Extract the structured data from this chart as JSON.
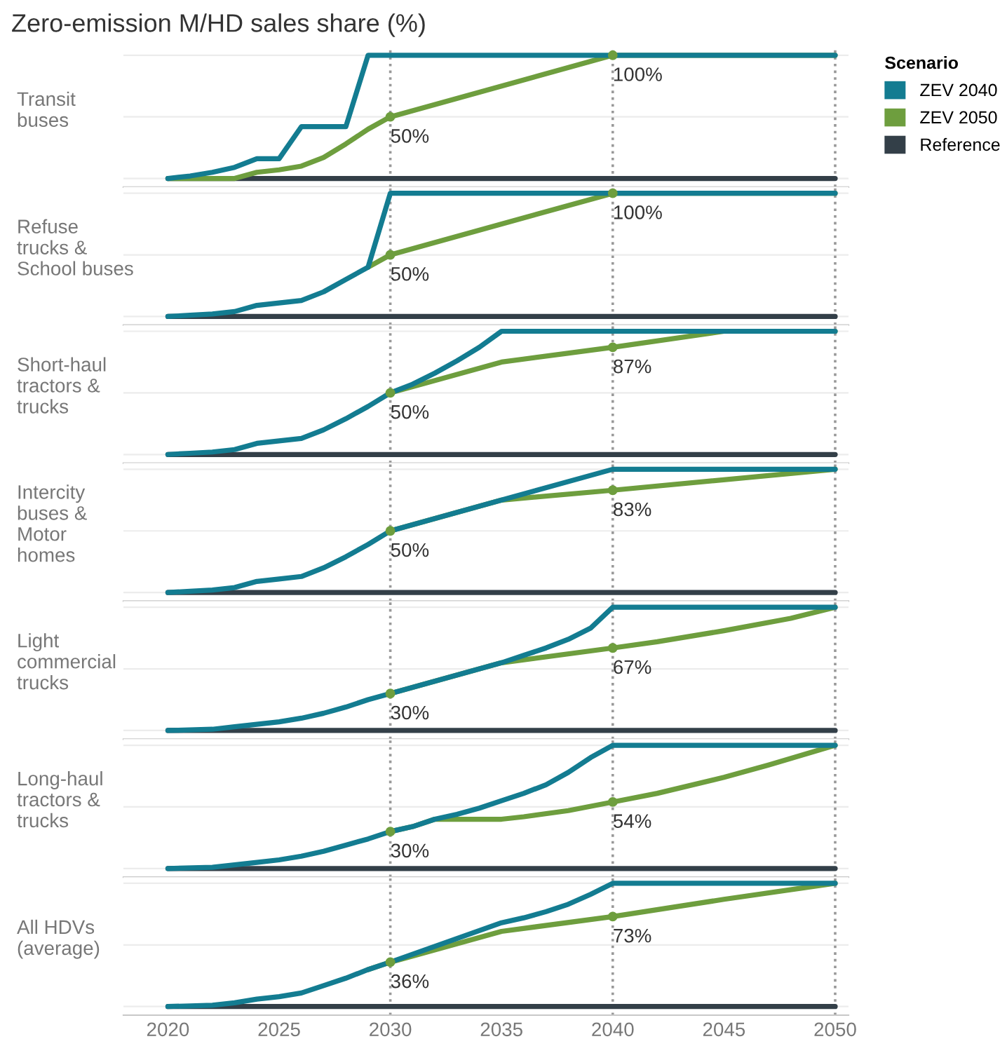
{
  "chart_data": [
    {
      "type": "line",
      "title": "Zero-emission M/HD sales share (%)",
      "ylabel": "Transit\nbuses",
      "legend_title": "Scenario",
      "legend": "right",
      "tick_labels": false,
      "grid": "y",
      "line_style": "solid",
      "xlim": [
        2018,
        2050.6
      ],
      "ylim": [
        -7,
        105
      ],
      "yticks": [
        {
          "value": 0,
          "label": null
        },
        {
          "value": 50,
          "label": null
        },
        {
          "value": 100,
          "label": null
        }
      ],
      "ref_lines": [
        {
          "axis": "x",
          "value": 2030,
          "line_style": "dotted",
          "color": "#999999"
        },
        {
          "axis": "x",
          "value": 2040,
          "line_style": "dotted",
          "color": "#999999"
        },
        {
          "axis": "x",
          "value": 2050,
          "line_style": "dotted",
          "color": "#999999"
        }
      ],
      "series": [
        {
          "name": "ZEV 2040",
          "color": "#137c91",
          "x": [
            2020,
            2021,
            2022,
            2023,
            2024,
            2025,
            2026,
            2027,
            2028,
            2029,
            2050
          ],
          "values": [
            0,
            2,
            5,
            9,
            16,
            16,
            42,
            42,
            42,
            100,
            100
          ]
        },
        {
          "name": "ZEV 2050",
          "color": "#6e9e3e",
          "x": [
            2020,
            2023,
            2024,
            2025,
            2026,
            2027,
            2028,
            2029,
            2030,
            2040,
            2050
          ],
          "values": [
            0,
            0,
            5,
            7,
            10,
            17,
            28,
            40,
            50,
            100,
            100
          ],
          "value_labels": [
            null,
            null,
            null,
            null,
            null,
            null,
            null,
            null,
            "50%",
            "100%",
            null
          ]
        },
        {
          "name": "Reference",
          "color": "#333f48",
          "x": [
            2020,
            2050
          ],
          "values": [
            0,
            0
          ]
        }
      ]
    },
    {
      "type": "line",
      "ylabel": "Refuse\ntrucks &\nSchool buses",
      "tick_labels": false,
      "grid": "y",
      "line_style": "solid",
      "xlim": [
        2018,
        2050.6
      ],
      "ylim": [
        -7,
        105
      ],
      "yticks": [
        {
          "value": 0,
          "label": null
        },
        {
          "value": 50,
          "label": null
        },
        {
          "value": 100,
          "label": null
        }
      ],
      "ref_lines": [
        {
          "axis": "x",
          "value": 2030,
          "line_style": "dotted",
          "color": "#999999"
        },
        {
          "axis": "x",
          "value": 2040,
          "line_style": "dotted",
          "color": "#999999"
        },
        {
          "axis": "x",
          "value": 2050,
          "line_style": "dotted",
          "color": "#999999"
        }
      ],
      "series": [
        {
          "color": "#137c91",
          "x": [
            2020,
            2021,
            2022,
            2023,
            2024,
            2025,
            2026,
            2027,
            2028,
            2029,
            2030,
            2050
          ],
          "values": [
            0,
            1,
            2,
            4,
            9,
            11,
            13,
            20,
            30,
            40,
            100,
            100
          ]
        },
        {
          "color": "#6e9e3e",
          "x": [
            2029,
            2030,
            2040,
            2050
          ],
          "values": [
            40,
            50,
            100,
            100
          ],
          "value_labels": [
            null,
            "50%",
            "100%",
            null
          ]
        },
        {
          "color": "#333f48",
          "x": [
            2020,
            2050
          ],
          "values": [
            0,
            0
          ]
        }
      ]
    },
    {
      "type": "line",
      "ylabel": "Short-haul\ntractors &\ntrucks",
      "tick_labels": false,
      "grid": "y",
      "line_style": "solid",
      "xlim": [
        2018,
        2050.6
      ],
      "ylim": [
        -7,
        105
      ],
      "yticks": [
        {
          "value": 0,
          "label": null
        },
        {
          "value": 50,
          "label": null
        },
        {
          "value": 100,
          "label": null
        }
      ],
      "ref_lines": [
        {
          "axis": "x",
          "value": 2030,
          "line_style": "dotted",
          "color": "#999999"
        },
        {
          "axis": "x",
          "value": 2040,
          "line_style": "dotted",
          "color": "#999999"
        },
        {
          "axis": "x",
          "value": 2050,
          "line_style": "dotted",
          "color": "#999999"
        }
      ],
      "series": [
        {
          "color": "#137c91",
          "x": [
            2020,
            2021,
            2022,
            2023,
            2024,
            2025,
            2026,
            2027,
            2028,
            2029,
            2030,
            2031,
            2032,
            2033,
            2034,
            2035,
            2050
          ],
          "values": [
            0,
            1,
            2,
            4,
            9,
            11,
            13,
            20,
            29,
            39,
            50,
            57,
            66,
            76,
            87,
            100,
            100
          ]
        },
        {
          "color": "#6e9e3e",
          "x": [
            2030,
            2035,
            2040,
            2045,
            2050
          ],
          "values": [
            50,
            75,
            87,
            100,
            100
          ],
          "value_labels": [
            "50%",
            null,
            "87%",
            null,
            null
          ]
        },
        {
          "color": "#333f48",
          "x": [
            2020,
            2050
          ],
          "values": [
            0,
            0
          ]
        }
      ]
    },
    {
      "type": "line",
      "ylabel": "Intercity\nbuses &\nMotor\nhomes",
      "tick_labels": false,
      "grid": "y",
      "line_style": "solid",
      "xlim": [
        2018,
        2050.6
      ],
      "ylim": [
        -7,
        105
      ],
      "yticks": [
        {
          "value": 0,
          "label": null
        },
        {
          "value": 50,
          "label": null
        },
        {
          "value": 100,
          "label": null
        }
      ],
      "ref_lines": [
        {
          "axis": "x",
          "value": 2030,
          "line_style": "dotted",
          "color": "#999999"
        },
        {
          "axis": "x",
          "value": 2040,
          "line_style": "dotted",
          "color": "#999999"
        },
        {
          "axis": "x",
          "value": 2050,
          "line_style": "dotted",
          "color": "#999999"
        }
      ],
      "series": [
        {
          "color": "#137c91",
          "x": [
            2020,
            2021,
            2022,
            2023,
            2024,
            2025,
            2026,
            2027,
            2028,
            2029,
            2030,
            2035,
            2040,
            2050
          ],
          "values": [
            0,
            1,
            2,
            4,
            9,
            11,
            13,
            20,
            29,
            39,
            50,
            75,
            100,
            100
          ]
        },
        {
          "color": "#6e9e3e",
          "x": [
            2030,
            2035,
            2040,
            2050
          ],
          "values": [
            50,
            75,
            83,
            100
          ],
          "value_labels": [
            "50%",
            null,
            "83%",
            null
          ]
        },
        {
          "color": "#333f48",
          "x": [
            2020,
            2050
          ],
          "values": [
            0,
            0
          ]
        }
      ]
    },
    {
      "type": "line",
      "ylabel": "Light\ncommercial\ntrucks",
      "tick_labels": false,
      "grid": "y",
      "line_style": "solid",
      "xlim": [
        2018,
        2050.6
      ],
      "ylim": [
        -7,
        105
      ],
      "yticks": [
        {
          "value": 0,
          "label": null
        },
        {
          "value": 50,
          "label": null
        },
        {
          "value": 100,
          "label": null
        }
      ],
      "ref_lines": [
        {
          "axis": "x",
          "value": 2030,
          "line_style": "dotted",
          "color": "#999999"
        },
        {
          "axis": "x",
          "value": 2040,
          "line_style": "dotted",
          "color": "#999999"
        },
        {
          "axis": "x",
          "value": 2050,
          "line_style": "dotted",
          "color": "#999999"
        }
      ],
      "series": [
        {
          "color": "#137c91",
          "x": [
            2020,
            2022,
            2023,
            2024,
            2025,
            2026,
            2027,
            2028,
            2029,
            2030,
            2035,
            2036,
            2037,
            2038,
            2039,
            2040,
            2050
          ],
          "values": [
            0,
            1,
            3,
            5,
            7,
            10,
            14,
            19,
            25,
            30,
            55,
            61,
            67,
            74,
            83,
            100,
            100
          ]
        },
        {
          "color": "#6e9e3e",
          "x": [
            2030,
            2035,
            2040,
            2042,
            2045,
            2048,
            2050
          ],
          "values": [
            30,
            55,
            67,
            72,
            81,
            91,
            100
          ],
          "value_labels": [
            "30%",
            null,
            "67%",
            null,
            null,
            null,
            null
          ]
        },
        {
          "color": "#333f48",
          "x": [
            2020,
            2050
          ],
          "values": [
            0,
            0
          ]
        }
      ]
    },
    {
      "type": "line",
      "ylabel": "Long-haul\ntractors &\ntrucks",
      "tick_labels": false,
      "grid": "y",
      "line_style": "solid",
      "xlim": [
        2018,
        2050.6
      ],
      "ylim": [
        -7,
        105
      ],
      "yticks": [
        {
          "value": 0,
          "label": null
        },
        {
          "value": 50,
          "label": null
        },
        {
          "value": 100,
          "label": null
        }
      ],
      "ref_lines": [
        {
          "axis": "x",
          "value": 2030,
          "line_style": "dotted",
          "color": "#999999"
        },
        {
          "axis": "x",
          "value": 2040,
          "line_style": "dotted",
          "color": "#999999"
        },
        {
          "axis": "x",
          "value": 2050,
          "line_style": "dotted",
          "color": "#999999"
        }
      ],
      "series": [
        {
          "color": "#137c91",
          "x": [
            2020,
            2022,
            2023,
            2024,
            2025,
            2026,
            2027,
            2028,
            2029,
            2030,
            2031,
            2032,
            2033,
            2034,
            2035,
            2036,
            2037,
            2038,
            2039,
            2040,
            2050
          ],
          "values": [
            0,
            1,
            3,
            5,
            7,
            10,
            14,
            19,
            24,
            30,
            34,
            40,
            44,
            49,
            55,
            61,
            68,
            78,
            90,
            100,
            100
          ]
        },
        {
          "color": "#6e9e3e",
          "x": [
            2030,
            2031,
            2032,
            2035,
            2036,
            2038,
            2040,
            2042,
            2045,
            2047,
            2050
          ],
          "values": [
            30,
            34,
            40,
            40,
            42,
            47,
            54,
            61,
            74,
            84,
            100
          ],
          "value_labels": [
            "30%",
            null,
            null,
            null,
            null,
            null,
            "54%",
            null,
            null,
            null,
            null
          ]
        },
        {
          "color": "#333f48",
          "x": [
            2020,
            2050
          ],
          "values": [
            0,
            0
          ]
        }
      ]
    },
    {
      "type": "line",
      "ylabel": "All HDVs\n(average)",
      "tick_labels": "x",
      "grid": "y",
      "line_style": "solid",
      "xlim": [
        2018,
        2050.6
      ],
      "xticks": [
        2020,
        2025,
        2030,
        2035,
        2040,
        2045,
        2050
      ],
      "ylim": [
        -7,
        105
      ],
      "yticks": [
        {
          "value": 0,
          "label": null
        },
        {
          "value": 50,
          "label": null
        },
        {
          "value": 100,
          "label": null
        }
      ],
      "ref_lines": [
        {
          "axis": "x",
          "value": 2030,
          "line_style": "dotted",
          "color": "#999999"
        },
        {
          "axis": "x",
          "value": 2040,
          "line_style": "dotted",
          "color": "#999999"
        },
        {
          "axis": "x",
          "value": 2050,
          "line_style": "dotted",
          "color": "#999999"
        }
      ],
      "series": [
        {
          "color": "#137c91",
          "x": [
            2020,
            2021,
            2022,
            2023,
            2024,
            2025,
            2026,
            2027,
            2028,
            2029,
            2030,
            2035,
            2036,
            2037,
            2038,
            2039,
            2040,
            2050
          ],
          "values": [
            0,
            0.5,
            1,
            3,
            6,
            8,
            11,
            17,
            23,
            30,
            36,
            68,
            72,
            77,
            83,
            91,
            100,
            100
          ]
        },
        {
          "color": "#6e9e3e",
          "x": [
            2029,
            2030,
            2035,
            2040,
            2045,
            2050
          ],
          "values": [
            30,
            36,
            61,
            73,
            87,
            100
          ],
          "value_labels": [
            null,
            "36%",
            null,
            "73%",
            null,
            null
          ]
        },
        {
          "color": "#333f48",
          "x": [
            2020,
            2050
          ],
          "values": [
            0,
            0
          ]
        }
      ]
    }
  ]
}
